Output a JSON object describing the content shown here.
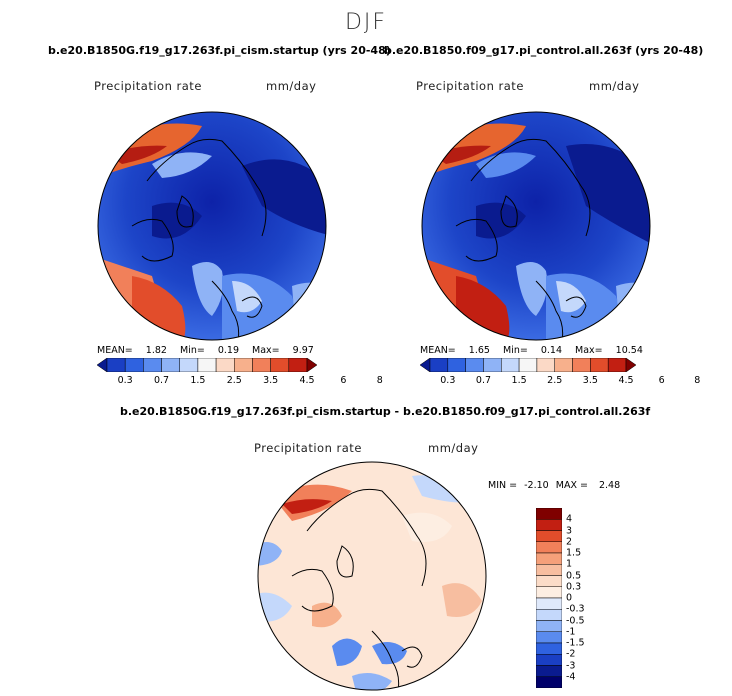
{
  "season": "DJF",
  "maps": [
    {
      "case": "b.e20.B1850G.f19_g17.263f.pi_cism.startup (yrs 20-48)",
      "variable": "Precipitation rate",
      "units": "mm/day",
      "stats": {
        "mean_label": "MEAN=",
        "mean": "1.82",
        "min_label": "Min=",
        "min": "0.19",
        "max_label": "Max=",
        "max": "9.97"
      }
    },
    {
      "case": "b.e20.B1850.f09_g17.pi_control.all.263f (yrs 20-48)",
      "variable": "Precipitation rate",
      "units": "mm/day",
      "stats": {
        "mean_label": "MEAN=",
        "mean": "1.65",
        "min_label": "Min=",
        "min": "0.14",
        "max_label": "Max=",
        "max": "10.54"
      }
    }
  ],
  "diff": {
    "title": "b.e20.B1850G.f19_g17.263f.pi_cism.startup - b.e20.B1850.f09_g17.pi_control.all.263f",
    "variable": "Precipitation rate",
    "units": "mm/day",
    "stats": {
      "min_label": "MIN =",
      "min": "-2.10",
      "max_label": "MAX =",
      "max": "2.48"
    }
  },
  "chart_data": [
    {
      "type": "heatmap",
      "projection": "north polar stereographic",
      "title": "b.e20.B1850G.f19_g17.263f.pi_cism.startup (yrs 20-48)",
      "colorbar_levels": [
        "0.3",
        "0.7",
        "1.5",
        "2.5",
        "3.5",
        "4.5",
        "6",
        "8"
      ],
      "colorbar_colors": [
        "#0a1b8f",
        "#1a3fc4",
        "#2f62e0",
        "#5a8bef",
        "#8fb3f6",
        "#c4d8fb",
        "#f6f6f6",
        "#fbd9c6",
        "#f7b08c",
        "#f1805a",
        "#e24d2b",
        "#c21f12",
        "#7f0000"
      ],
      "mean": 1.82,
      "min": 0.19,
      "max": 9.97
    },
    {
      "type": "heatmap",
      "projection": "north polar stereographic",
      "title": "b.e20.B1850.f09_g17.pi_control.all.263f (yrs 20-48)",
      "colorbar_levels": [
        "0.3",
        "0.7",
        "1.5",
        "2.5",
        "3.5",
        "4.5",
        "6",
        "8"
      ],
      "colorbar_colors": [
        "#0a1b8f",
        "#1a3fc4",
        "#2f62e0",
        "#5a8bef",
        "#8fb3f6",
        "#c4d8fb",
        "#f6f6f6",
        "#fbd9c6",
        "#f7b08c",
        "#f1805a",
        "#e24d2b",
        "#c21f12",
        "#7f0000"
      ],
      "mean": 1.65,
      "min": 0.14,
      "max": 10.54
    },
    {
      "type": "heatmap",
      "projection": "north polar stereographic",
      "title": "b.e20.B1850G.f19_g17.263f.pi_cism.startup - b.e20.B1850.f09_g17.pi_control.all.263f",
      "colorbar_levels": [
        "4",
        "3",
        "2",
        "1.5",
        "1",
        "0.5",
        "0.3",
        "0",
        "-0.3",
        "-0.5",
        "-1",
        "-1.5",
        "-2",
        "-3",
        "-4"
      ],
      "colorbar_colors": [
        "#7f0000",
        "#c21f12",
        "#e24d2b",
        "#f1805a",
        "#f5a07a",
        "#f7bea0",
        "#fbdcc8",
        "#fdeee2",
        "#dfe9fb",
        "#c4d8fb",
        "#8fb3f6",
        "#5a8bef",
        "#2f62e0",
        "#1a3fc4",
        "#0a1b8f",
        "#00006a"
      ],
      "min": -2.1,
      "max": 2.48
    }
  ]
}
